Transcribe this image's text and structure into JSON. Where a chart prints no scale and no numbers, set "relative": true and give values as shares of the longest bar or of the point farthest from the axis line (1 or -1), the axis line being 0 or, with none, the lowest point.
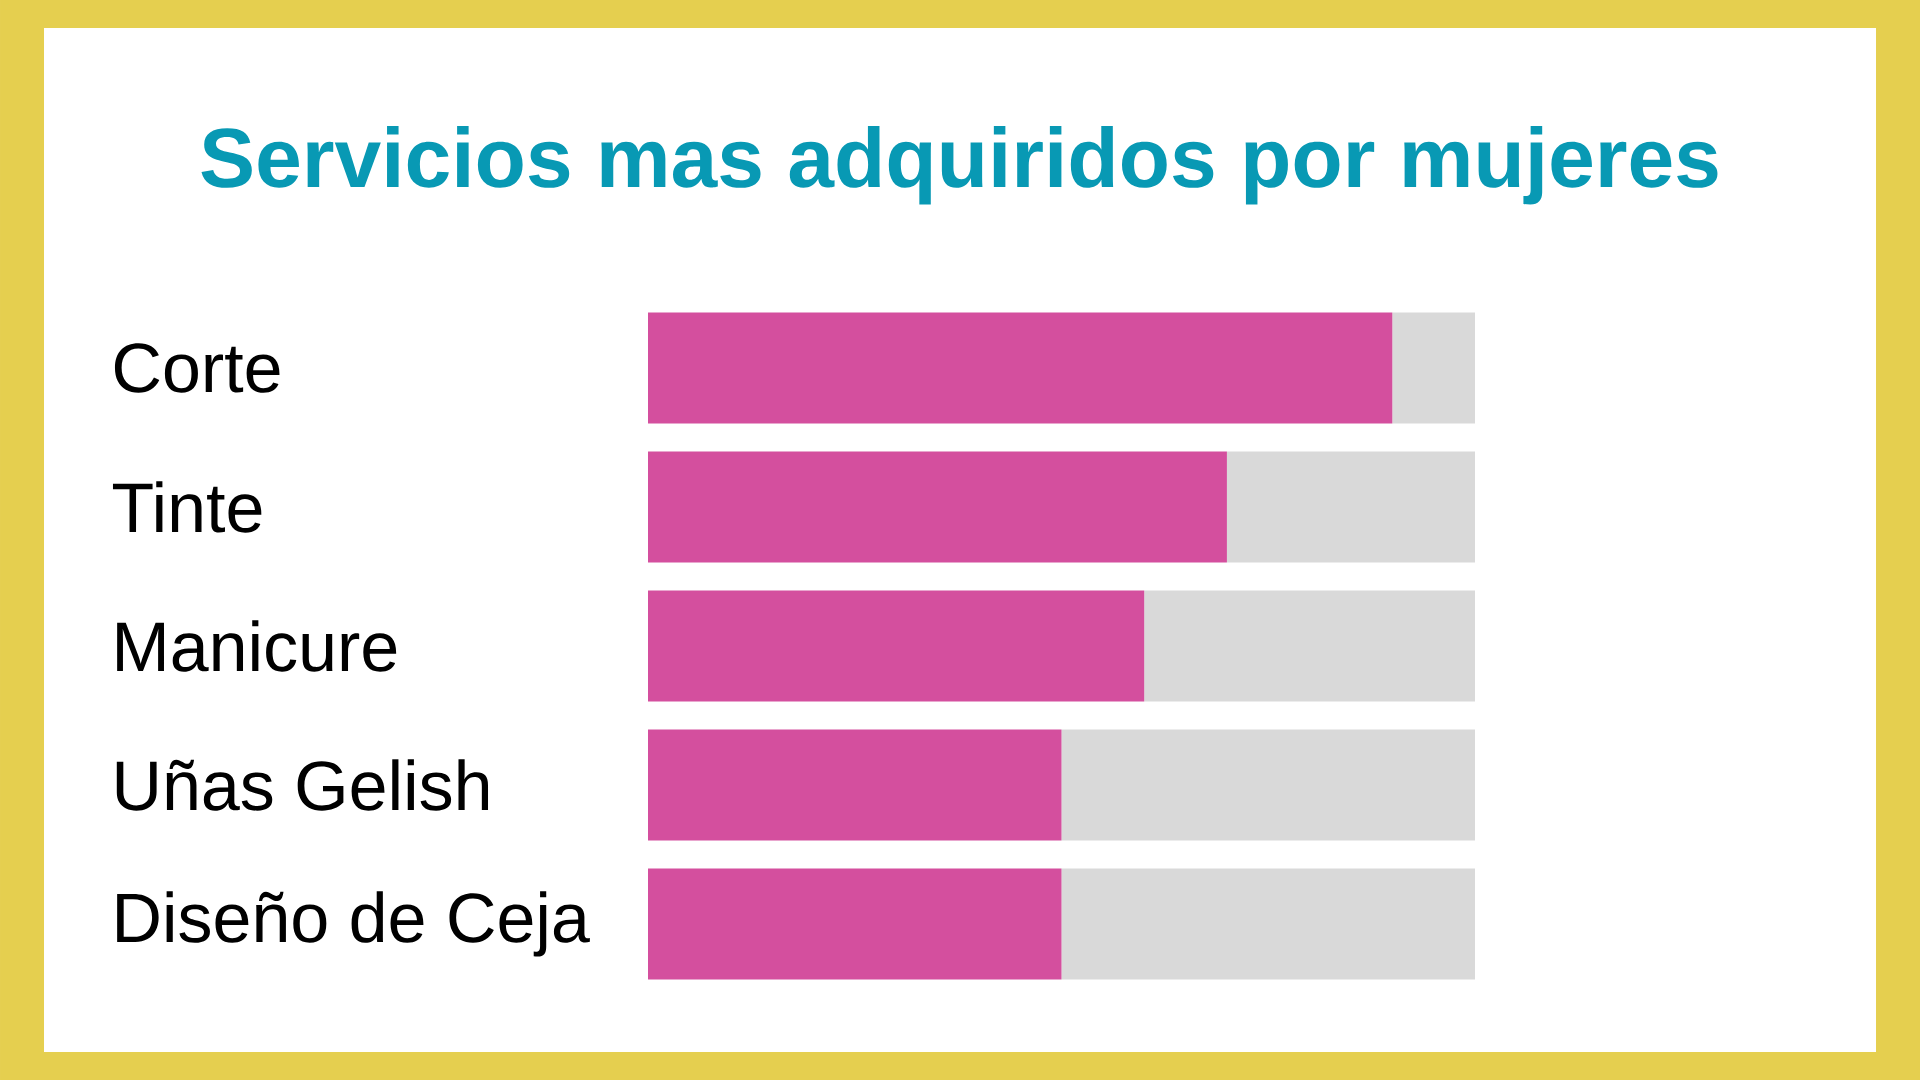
{
  "chart_data": {
    "type": "bar",
    "orientation": "horizontal",
    "stacked": true,
    "relative": true,
    "title": "Servicios mas adquiridos por mujeres",
    "categories": [
      "Corte",
      "Tinte",
      "Manicure",
      "Uñas Gelish",
      "Diseño de Ceja"
    ],
    "series": [
      {
        "color": "#d44f9e",
        "values": [
          0.9,
          0.7,
          0.6,
          0.5,
          0.5
        ]
      },
      {
        "color": "#d9d9d9",
        "values": [
          0.1,
          0.3,
          0.4,
          0.5,
          0.5
        ]
      }
    ]
  }
}
